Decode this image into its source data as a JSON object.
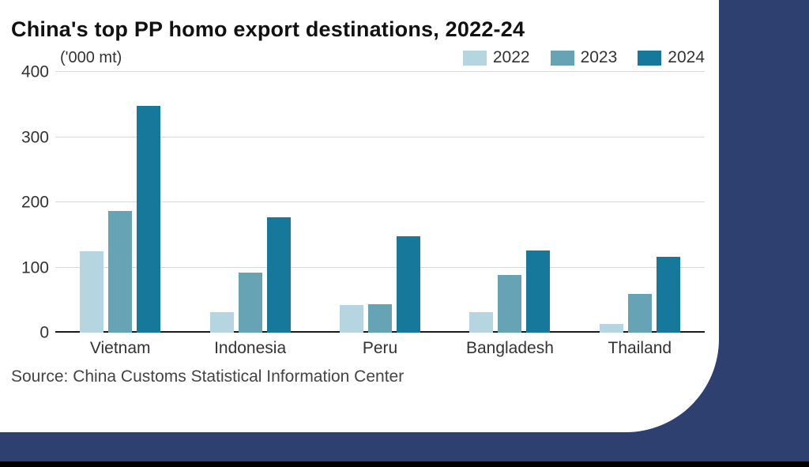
{
  "title": "China's top PP homo export destinations, 2022-24",
  "unit_label": "('000 mt)",
  "source": "Source: China Customs Statistical Information Center",
  "colors": {
    "background_navy": "#2d4070",
    "grid": "#d9d9d9",
    "baseline": "#1a1a1a",
    "series_2022": "#b5d5e0",
    "series_2023": "#66a3b5",
    "series_2024": "#16789a"
  },
  "chart_data": {
    "type": "bar",
    "categories": [
      "Vietnam",
      "Indonesia",
      "Peru",
      "Bangladesh",
      "Thailand"
    ],
    "series": [
      {
        "name": "2022",
        "color": "#b5d5e0",
        "values": [
          125,
          32,
          43,
          32,
          13
        ]
      },
      {
        "name": "2023",
        "color": "#66a3b5",
        "values": [
          187,
          92,
          44,
          89,
          59
        ]
      },
      {
        "name": "2024",
        "color": "#16789a",
        "values": [
          348,
          177,
          148,
          126,
          116
        ]
      }
    ],
    "title": "China's top PP homo export destinations, 2022-24",
    "xlabel": "",
    "ylabel": "('000 mt)",
    "ylim": [
      0,
      400
    ],
    "yticks": [
      0,
      100,
      200,
      300,
      400
    ],
    "grid": true,
    "legend_position": "top-right"
  }
}
